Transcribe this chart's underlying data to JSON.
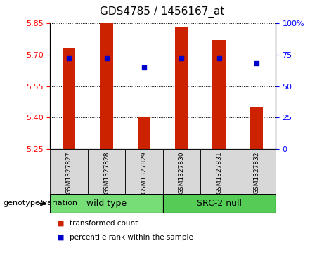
{
  "title": "GDS4785 / 1456167_at",
  "samples": [
    "GSM1327827",
    "GSM1327828",
    "GSM1327829",
    "GSM1327830",
    "GSM1327831",
    "GSM1327832"
  ],
  "transformed_counts": [
    5.73,
    5.85,
    5.4,
    5.83,
    5.77,
    5.45
  ],
  "percentile_ranks": [
    72,
    72,
    65,
    72,
    72,
    68
  ],
  "ylim_left": [
    5.25,
    5.85
  ],
  "ylim_right": [
    0,
    100
  ],
  "yticks_left": [
    5.25,
    5.4,
    5.55,
    5.7,
    5.85
  ],
  "yticks_right": [
    0,
    25,
    50,
    75,
    100
  ],
  "ytick_right_labels": [
    "0",
    "25",
    "50",
    "75",
    "100%"
  ],
  "baseline": 5.25,
  "bar_color": "#cc2200",
  "dot_color": "#0000cc",
  "bg_color": "#d8d8d8",
  "plot_bg": "#ffffff",
  "wild_type_color": "#77dd77",
  "src2_null_color": "#55cc55",
  "genotype_label": "genotype/variation",
  "legend_items": [
    {
      "label": "transformed count",
      "color": "#cc2200"
    },
    {
      "label": "percentile rank within the sample",
      "color": "#0000cc"
    }
  ],
  "title_fontsize": 11,
  "tick_fontsize": 8,
  "label_fontsize": 8,
  "sample_fontsize": 6.5,
  "group_fontsize": 9
}
